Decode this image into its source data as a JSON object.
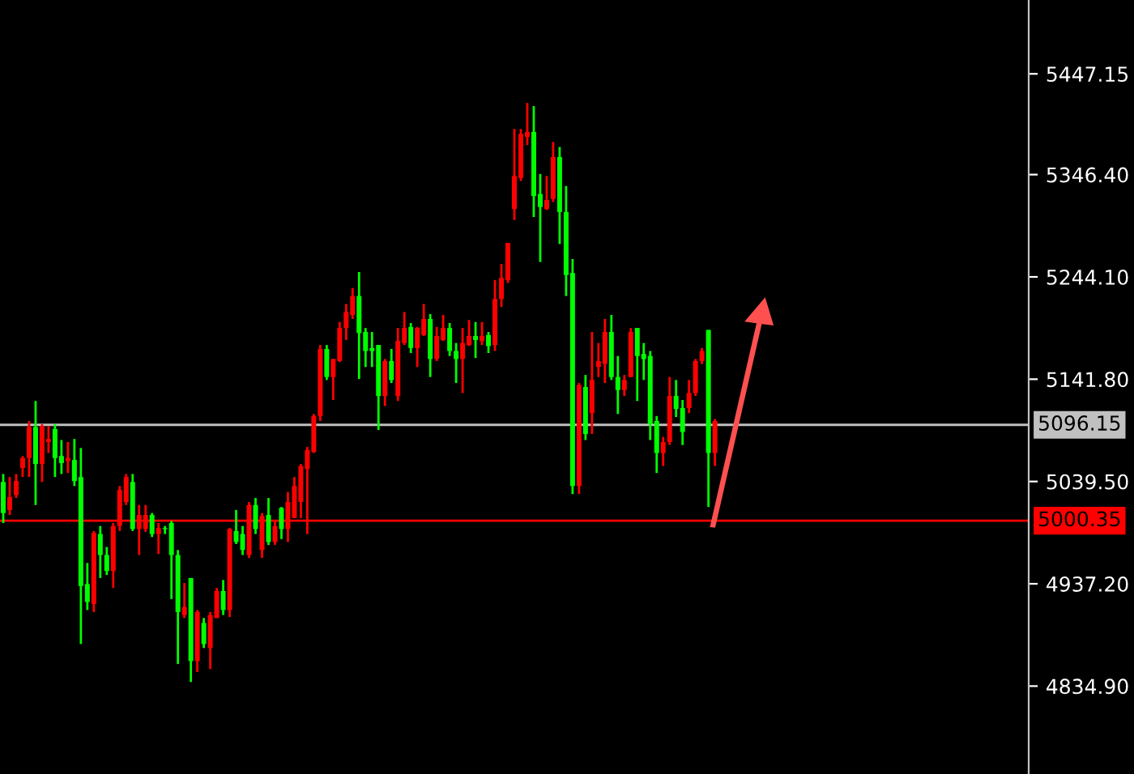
{
  "chart_data": {
    "type": "candlestick",
    "categories": [
      null,
      null,
      null,
      null,
      null,
      null,
      null,
      null,
      null,
      null,
      null,
      null,
      null,
      null,
      null,
      null,
      null,
      null,
      null,
      null,
      null,
      null,
      null,
      null,
      null,
      null,
      null,
      null,
      null,
      null,
      null,
      null,
      null,
      null,
      null,
      null,
      null,
      null,
      null,
      null,
      null,
      null,
      null,
      null,
      null,
      null,
      null,
      null,
      null,
      null,
      null,
      null,
      null,
      null,
      null,
      null,
      null,
      null,
      null,
      null,
      null,
      null,
      null,
      null,
      null,
      null,
      null,
      null,
      null,
      null,
      null,
      null,
      null,
      null,
      null,
      null,
      null,
      null,
      null,
      null,
      null,
      null,
      null,
      null,
      null,
      null,
      null,
      null,
      null,
      null,
      null,
      null,
      null,
      null,
      null,
      null,
      null,
      null,
      null,
      null,
      null,
      null,
      null,
      null,
      null,
      null,
      null,
      null,
      null,
      null,
      null,
      null,
      null,
      null,
      null,
      null,
      null,
      null,
      null,
      null,
      null,
      null,
      null,
      null,
      null,
      null,
      null,
      null,
      null,
      null,
      null,
      null,
      null,
      null,
      null,
      null,
      null,
      null,
      null,
      null,
      null,
      null,
      null,
      null,
      null,
      null,
      null,
      null,
      null,
      null,
      null,
      null,
      null,
      null,
      null,
      null,
      null,
      null,
      null
    ],
    "ohlc": [
      [
        5039,
        5047,
        4998,
        5008
      ],
      [
        5011,
        5044,
        5006,
        5024
      ],
      [
        5026,
        5047,
        5023,
        5040
      ],
      [
        5053,
        5065,
        5044,
        5063
      ],
      [
        5063,
        5100,
        5044,
        5094
      ],
      [
        5094,
        5120,
        5016,
        5057
      ],
      [
        5057,
        5097,
        5039,
        5095
      ],
      [
        5079,
        5095,
        5068,
        5082
      ],
      [
        5092,
        5097,
        5044,
        5063
      ],
      [
        5065,
        5081,
        5047,
        5058
      ],
      [
        5060,
        5079,
        5048,
        5063
      ],
      [
        5061,
        5082,
        5035,
        5040
      ],
      [
        5044,
        5073,
        4877,
        4935
      ],
      [
        4937,
        4958,
        4911,
        4919
      ],
      [
        4917,
        4990,
        4909,
        4988
      ],
      [
        4987,
        4995,
        4943,
        4966
      ],
      [
        4966,
        4974,
        4946,
        4950
      ],
      [
        4950,
        4998,
        4933,
        4995
      ],
      [
        4995,
        5035,
        4990,
        5031
      ],
      [
        5019,
        5047,
        5016,
        5044
      ],
      [
        5039,
        5047,
        4990,
        4992
      ],
      [
        4992,
        5016,
        4966,
        5006
      ],
      [
        4992,
        5016,
        4989,
        5006
      ],
      [
        5006,
        5008,
        4984,
        4987
      ],
      [
        4987,
        4998,
        4967,
        4993
      ],
      [
        4993,
        4995,
        4987,
        4992
      ],
      [
        4998,
        5000,
        4922,
        4966
      ],
      [
        4966,
        4971,
        4857,
        4909
      ],
      [
        4906,
        4938,
        4903,
        4914
      ],
      [
        4943,
        4943,
        4839,
        4860
      ],
      [
        4860,
        4911,
        4849,
        4909
      ],
      [
        4898,
        4903,
        4873,
        4877
      ],
      [
        4873,
        4909,
        4852,
        4906
      ],
      [
        4903,
        4933,
        4903,
        4930
      ],
      [
        4930,
        4941,
        4906,
        4911
      ],
      [
        4911,
        4993,
        4904,
        4992
      ],
      [
        4990,
        5011,
        4977,
        4979
      ],
      [
        4987,
        4995,
        4966,
        4971
      ],
      [
        4966,
        5019,
        4963,
        5016
      ],
      [
        5016,
        5023,
        4987,
        4992
      ],
      [
        4971,
        5008,
        4963,
        5005
      ],
      [
        5006,
        5023,
        4976,
        4979
      ],
      [
        4979,
        5000,
        4976,
        4995
      ],
      [
        5013,
        5014,
        4982,
        4992
      ],
      [
        4992,
        5029,
        4979,
        5019
      ],
      [
        5003,
        5044,
        5003,
        5035
      ],
      [
        5019,
        5057,
        5003,
        5055
      ],
      [
        5052,
        5074,
        4987,
        5071
      ],
      [
        5069,
        5107,
        5068,
        5105
      ],
      [
        5105,
        5176,
        5100,
        5172
      ],
      [
        5172,
        5176,
        5141,
        5144
      ],
      [
        5144,
        5162,
        5121,
        5162
      ],
      [
        5160,
        5199,
        5159,
        5193
      ],
      [
        5193,
        5217,
        5181,
        5209
      ],
      [
        5206,
        5233,
        5202,
        5225
      ],
      [
        5225,
        5249,
        5142,
        5188
      ],
      [
        5189,
        5193,
        5154,
        5170
      ],
      [
        5173,
        5189,
        5154,
        5170
      ],
      [
        5176,
        5176,
        5091,
        5125
      ],
      [
        5125,
        5162,
        5115,
        5160
      ],
      [
        5160,
        5172,
        5138,
        5141
      ],
      [
        5125,
        5193,
        5120,
        5180
      ],
      [
        5178,
        5209,
        5176,
        5193
      ],
      [
        5194,
        5198,
        5168,
        5173
      ],
      [
        5173,
        5194,
        5154,
        5193
      ],
      [
        5186,
        5217,
        5185,
        5202
      ],
      [
        5202,
        5207,
        5144,
        5162
      ],
      [
        5162,
        5194,
        5160,
        5185
      ],
      [
        5181,
        5206,
        5180,
        5193
      ],
      [
        5193,
        5198,
        5165,
        5170
      ],
      [
        5170,
        5178,
        5138,
        5162
      ],
      [
        5162,
        5193,
        5128,
        5178
      ],
      [
        5176,
        5201,
        5175,
        5185
      ],
      [
        5185,
        5199,
        5163,
        5181
      ],
      [
        5180,
        5199,
        5176,
        5185
      ],
      [
        5186,
        5189,
        5168,
        5175
      ],
      [
        5176,
        5241,
        5170,
        5222
      ],
      [
        5222,
        5257,
        5214,
        5243
      ],
      [
        5241,
        5278,
        5238,
        5278
      ],
      [
        5312,
        5392,
        5301,
        5345
      ],
      [
        5343,
        5392,
        5340,
        5387
      ],
      [
        5384,
        5418,
        5376,
        5389
      ],
      [
        5389,
        5415,
        5304,
        5325
      ],
      [
        5327,
        5347,
        5259,
        5314
      ],
      [
        5312,
        5345,
        5311,
        5321
      ],
      [
        5322,
        5379,
        5319,
        5364
      ],
      [
        5364,
        5374,
        5277,
        5309
      ],
      [
        5309,
        5335,
        5225,
        5246
      ],
      [
        5248,
        5262,
        5027,
        5035
      ],
      [
        5035,
        5138,
        5027,
        5136
      ],
      [
        5134,
        5146,
        5081,
        5087
      ],
      [
        5108,
        5189,
        5087,
        5141
      ],
      [
        5154,
        5178,
        5144,
        5160
      ],
      [
        5157,
        5202,
        5138,
        5189
      ],
      [
        5189,
        5206,
        5141,
        5144
      ],
      [
        5144,
        5165,
        5107,
        5131
      ],
      [
        5131,
        5146,
        5125,
        5141
      ],
      [
        5144,
        5193,
        5144,
        5189
      ],
      [
        5193,
        5193,
        5120,
        5165
      ],
      [
        5167,
        5178,
        5141,
        5162
      ],
      [
        5165,
        5170,
        5081,
        5097
      ],
      [
        5100,
        5105,
        5048,
        5068
      ],
      [
        5068,
        5084,
        5055,
        5079
      ],
      [
        5079,
        5144,
        5076,
        5125
      ],
      [
        5125,
        5141,
        5104,
        5112
      ],
      [
        5113,
        5121,
        5076,
        5089
      ],
      [
        5113,
        5141,
        5108,
        5128
      ],
      [
        5128,
        5162,
        5125,
        5160
      ],
      [
        5160,
        5173,
        5157,
        5170
      ],
      [
        5191,
        5191,
        5014,
        5068
      ],
      [
        5068,
        5102,
        5055,
        5100
      ],
      null,
      null,
      null,
      null,
      null,
      null,
      null,
      null,
      null,
      null,
      null,
      null,
      null,
      null,
      null,
      null,
      null,
      null,
      null,
      null,
      null,
      null,
      null,
      null,
      null,
      null,
      null,
      null,
      null,
      null,
      null,
      null,
      null,
      null,
      null,
      null,
      null,
      null,
      null,
      null,
      null,
      null,
      null,
      null,
      null,
      null,
      null,
      null
    ],
    "colors": [
      "#00ff00",
      "#ff0000",
      "#ff0000",
      "#ff0000",
      "#ff0000",
      "#00ff00",
      "#ff0000",
      "#ff0000",
      "#00ff00",
      "#00ff00",
      "#ff0000",
      "#00ff00",
      "#00ff00",
      "#00ff00",
      "#ff0000",
      "#00ff00",
      "#00ff00",
      "#ff0000",
      "#ff0000",
      "#ff0000",
      "#00ff00",
      "#ff0000",
      "#ff0000",
      "#00ff00",
      "#ff0000",
      "#00ff00",
      "#00ff00",
      "#00ff00",
      "#ff0000",
      "#00ff00",
      "#ff0000",
      "#00ff00",
      "#ff0000",
      "#ff0000",
      "#00ff00",
      "#ff0000",
      "#00ff00",
      "#00ff00",
      "#ff0000",
      "#00ff00",
      "#ff0000",
      "#00ff00",
      "#ff0000",
      "#00ff00",
      "#ff0000",
      "#ff0000",
      "#ff0000",
      "#ff0000",
      "#ff0000",
      "#ff0000",
      "#00ff00",
      "#ff0000",
      "#ff0000",
      "#ff0000",
      "#ff0000",
      "#00ff00",
      "#00ff00",
      "#00ff00",
      "#00ff00",
      "#ff0000",
      "#00ff00",
      "#ff0000",
      "#ff0000",
      "#00ff00",
      "#ff0000",
      "#ff0000",
      "#00ff00",
      "#ff0000",
      "#ff0000",
      "#00ff00",
      "#00ff00",
      "#ff0000",
      "#ff0000",
      "#00ff00",
      "#ff0000",
      "#00ff00",
      "#ff0000",
      "#ff0000",
      "#ff0000",
      "#ff0000",
      "#ff0000",
      "#ff0000",
      "#00ff00",
      "#00ff00",
      "#ff0000",
      "#ff0000",
      "#00ff00",
      "#00ff00",
      "#00ff00",
      "#ff0000",
      "#00ff00",
      "#ff0000",
      "#ff0000",
      "#ff0000",
      "#00ff00",
      "#00ff00",
      "#ff0000",
      "#ff0000",
      "#00ff00",
      "#00ff00",
      "#00ff00",
      "#00ff00",
      "#ff0000",
      "#ff0000",
      "#00ff00",
      "#00ff00",
      "#ff0000",
      "#ff0000",
      "#ff0000",
      "#00ff00",
      "#ff0000",
      null,
      null,
      null,
      null,
      null,
      null,
      null,
      null,
      null,
      null,
      null,
      null,
      null,
      null,
      null,
      null,
      null,
      null,
      null,
      null,
      null,
      null,
      null,
      null,
      null,
      null,
      null,
      null,
      null,
      null,
      null,
      null,
      null,
      null,
      null,
      null,
      null,
      null,
      null,
      null,
      null,
      null,
      null,
      null,
      null,
      null,
      null,
      null
    ],
    "ylim": [
      4747,
      5521
    ],
    "yticks": [
      5447.15,
      {
        "value": 5346.4,
        "label": "5346.40"
      },
      {
        "value": 5244.1,
        "label": "5244.10"
      },
      {
        "value": 5141.8,
        "label": "5141.80"
      },
      {
        "value": 5039.5,
        "label": "5039.50"
      },
      {
        "value": 4937.2,
        "label": "4937.20"
      },
      {
        "value": 4834.9,
        "label": "4834.90"
      }
    ],
    "ref_lines": [
      {
        "axis": "y",
        "value": 5096.15,
        "label": "5096.15",
        "color": "#c0c0c0"
      },
      {
        "axis": "y",
        "value": 5000.35,
        "label": "5000.35",
        "color": "#ff0000"
      }
    ],
    "tick_labels": "y",
    "grid": false,
    "legend": false
  }
}
